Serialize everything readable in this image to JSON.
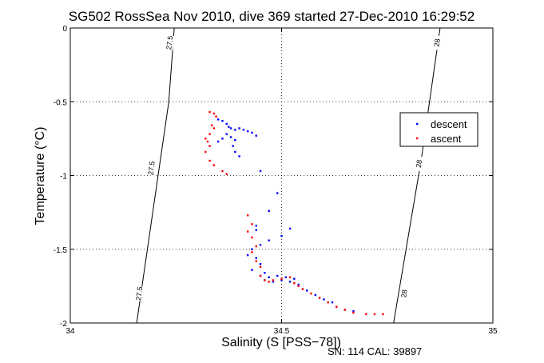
{
  "chart_data": {
    "type": "scatter",
    "title": "SG502 RossSea Nov 2010, dive 369 started 27-Dec-2010 16:29:52",
    "xlabel": "Salinity (S [PSS−78])",
    "ylabel": "Temperature (°C)",
    "xlim": [
      34,
      35
    ],
    "ylim": [
      -2,
      0
    ],
    "xticks": [
      34,
      34.5,
      35
    ],
    "xtick_labels": [
      "34",
      "34.5",
      "35"
    ],
    "yticks": [
      0,
      -0.5,
      -1,
      -1.5,
      -2
    ],
    "ytick_labels": [
      "0",
      "-0.5",
      "-1",
      "-1.5",
      "-2"
    ],
    "grid": true,
    "grid_style": "dotted",
    "legend_position": "right",
    "footer": "SN: 114  CAL: 39897",
    "contours": [
      {
        "label": "27.5",
        "points": [
          [
            34.157,
            -2
          ],
          [
            34.233,
            -0.5
          ],
          [
            34.246,
            0
          ]
        ],
        "label_positions": [
          [
            34.235,
            -0.1
          ],
          [
            34.192,
            -0.95
          ],
          [
            34.163,
            -1.8
          ]
        ]
      },
      {
        "label": "28",
        "points": [
          [
            34.765,
            -2
          ],
          [
            34.83,
            -0.9
          ],
          [
            34.875,
            0
          ]
        ],
        "label_positions": [
          [
            34.868,
            -0.1
          ],
          [
            34.825,
            -0.92
          ],
          [
            34.79,
            -1.8
          ]
        ]
      }
    ],
    "series": [
      {
        "name": "descent",
        "color": "#0000ff",
        "points": [
          [
            34.35,
            -0.62
          ],
          [
            34.36,
            -0.63
          ],
          [
            34.37,
            -0.65
          ],
          [
            34.375,
            -0.67
          ],
          [
            34.38,
            -0.68
          ],
          [
            34.39,
            -0.69
          ],
          [
            34.4,
            -0.68
          ],
          [
            34.41,
            -0.69
          ],
          [
            34.42,
            -0.7
          ],
          [
            34.43,
            -0.71
          ],
          [
            34.37,
            -0.72
          ],
          [
            34.38,
            -0.74
          ],
          [
            34.39,
            -0.76
          ],
          [
            34.36,
            -0.75
          ],
          [
            34.35,
            -0.77
          ],
          [
            34.44,
            -0.73
          ],
          [
            34.385,
            -0.8
          ],
          [
            34.39,
            -0.84
          ],
          [
            34.4,
            -0.87
          ],
          [
            34.45,
            -0.97
          ],
          [
            34.49,
            -1.12
          ],
          [
            34.47,
            -1.24
          ],
          [
            34.44,
            -1.34
          ],
          [
            34.44,
            -1.37
          ],
          [
            34.47,
            -1.44
          ],
          [
            34.5,
            -1.41
          ],
          [
            34.52,
            -1.36
          ],
          [
            34.45,
            -1.47
          ],
          [
            34.43,
            -1.5
          ],
          [
            34.42,
            -1.54
          ],
          [
            34.44,
            -1.56
          ],
          [
            34.45,
            -1.6
          ],
          [
            34.46,
            -1.66
          ],
          [
            34.43,
            -1.64
          ],
          [
            34.45,
            -1.68
          ],
          [
            34.47,
            -1.69
          ],
          [
            34.49,
            -1.68
          ],
          [
            34.51,
            -1.69
          ],
          [
            34.53,
            -1.7
          ],
          [
            34.46,
            -1.71
          ],
          [
            34.48,
            -1.72
          ],
          [
            34.5,
            -1.71
          ],
          [
            34.52,
            -1.72
          ],
          [
            34.54,
            -1.74
          ],
          [
            34.56,
            -1.78
          ],
          [
            34.58,
            -1.81
          ],
          [
            34.6,
            -1.84
          ],
          [
            34.62,
            -1.86
          ],
          [
            34.63,
            -1.89
          ],
          [
            34.65,
            -1.91
          ],
          [
            34.67,
            -1.92
          ]
        ]
      },
      {
        "name": "ascent",
        "color": "#ff0000",
        "points": [
          [
            34.33,
            -0.57
          ],
          [
            34.34,
            -0.58
          ],
          [
            34.345,
            -0.6
          ],
          [
            34.335,
            -0.66
          ],
          [
            34.34,
            -0.68
          ],
          [
            34.33,
            -0.72
          ],
          [
            34.32,
            -0.75
          ],
          [
            34.325,
            -0.77
          ],
          [
            34.33,
            -0.8
          ],
          [
            34.32,
            -0.84
          ],
          [
            34.33,
            -0.9
          ],
          [
            34.34,
            -0.93
          ],
          [
            34.36,
            -0.97
          ],
          [
            34.37,
            -0.99
          ],
          [
            34.42,
            -1.27
          ],
          [
            34.43,
            -1.33
          ],
          [
            34.42,
            -1.38
          ],
          [
            34.43,
            -1.42
          ],
          [
            34.44,
            -1.48
          ],
          [
            34.43,
            -1.52
          ],
          [
            34.44,
            -1.58
          ],
          [
            34.45,
            -1.62
          ],
          [
            34.45,
            -1.68
          ],
          [
            34.46,
            -1.71
          ],
          [
            34.47,
            -1.72
          ],
          [
            34.48,
            -1.71
          ],
          [
            34.5,
            -1.7
          ],
          [
            34.52,
            -1.69
          ],
          [
            34.53,
            -1.73
          ],
          [
            34.54,
            -1.75
          ],
          [
            34.55,
            -1.77
          ],
          [
            34.57,
            -1.8
          ],
          [
            34.59,
            -1.83
          ],
          [
            34.61,
            -1.86
          ],
          [
            34.63,
            -1.89
          ],
          [
            34.65,
            -1.91
          ],
          [
            34.67,
            -1.93
          ],
          [
            34.7,
            -1.94
          ],
          [
            34.72,
            -1.94
          ],
          [
            34.74,
            -1.94
          ]
        ]
      }
    ]
  }
}
